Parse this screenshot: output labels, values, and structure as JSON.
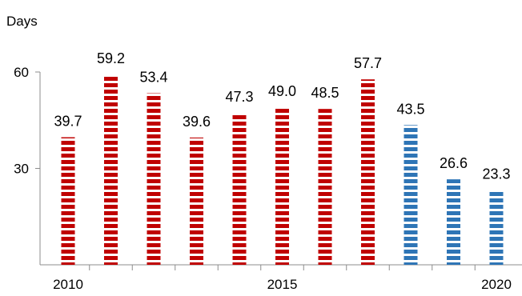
{
  "chart_data": {
    "type": "bar",
    "title": "",
    "xlabel": "",
    "ylabel": "Days",
    "ylim": [
      0,
      60
    ],
    "yticks": [
      30,
      60
    ],
    "categories": [
      "2010",
      "2011",
      "2012",
      "2013",
      "2014",
      "2015",
      "2016",
      "2017",
      "2018",
      "2019",
      "2020"
    ],
    "x_tick_labels": [
      "2010",
      "2015",
      "2020"
    ],
    "values": [
      39.7,
      59.2,
      53.4,
      39.6,
      47.3,
      49.0,
      48.5,
      57.7,
      43.5,
      26.6,
      23.3
    ],
    "value_labels": [
      "39.7",
      "59.2",
      "53.4",
      "39.6",
      "47.3",
      "49.0",
      "48.5",
      "57.7",
      "43.5",
      "26.6",
      "23.3"
    ],
    "bar_colors": [
      "#c00000",
      "#c00000",
      "#c00000",
      "#c00000",
      "#c00000",
      "#c00000",
      "#c00000",
      "#c00000",
      "#2e75b6",
      "#2e75b6",
      "#2e75b6"
    ],
    "bar_pattern": "horizontal-stripes",
    "grid": false,
    "legend": "none"
  }
}
